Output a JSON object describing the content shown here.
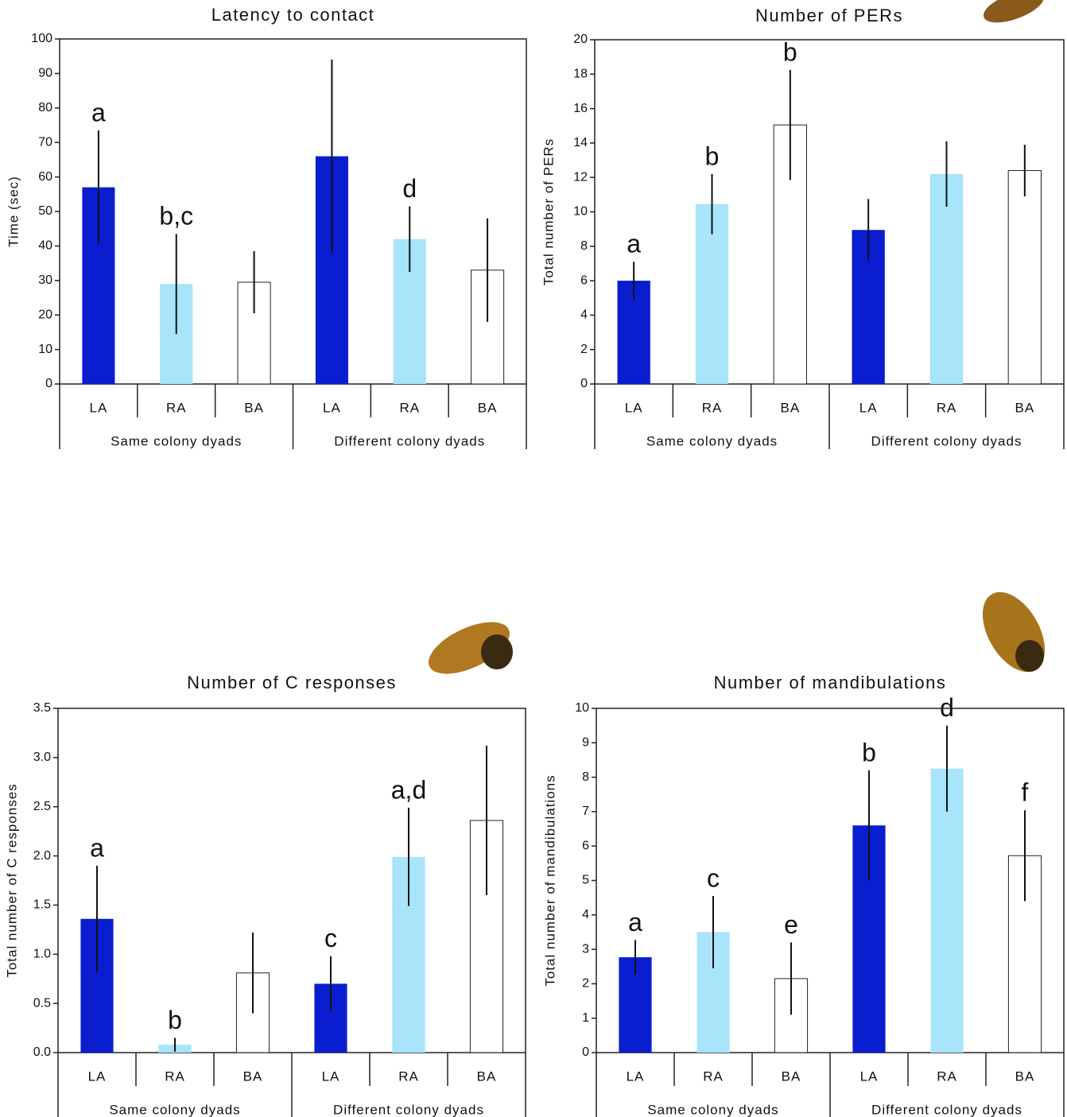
{
  "chart_data": [
    {
      "type": "bar",
      "title": "Latency to contact",
      "y_label": "Time (sec)",
      "categories": [
        "LA",
        "RA",
        "BA",
        "LA",
        "RA",
        "BA"
      ],
      "groups": [
        "Same colony dyads",
        "Different colony dyads"
      ],
      "values": [
        57,
        29,
        29.5,
        66,
        42,
        33
      ],
      "errors": [
        16.5,
        14.5,
        9,
        28,
        9.5,
        15
      ],
      "annotations": [
        "a",
        "b,c",
        null,
        null,
        "d",
        null
      ],
      "colors": [
        "#0a1ecf",
        "#a8e4fa",
        "#ffffff",
        "#0a1ecf",
        "#a8e4fa",
        "#ffffff"
      ],
      "ylim": [
        0,
        100
      ],
      "yticks": [
        0,
        10,
        20,
        30,
        40,
        50,
        60,
        70,
        80,
        90,
        100
      ]
    },
    {
      "type": "bar",
      "title": "Number of PERs",
      "y_label": "Total number of PERs",
      "categories": [
        "LA",
        "RA",
        "BA",
        "LA",
        "RA",
        "BA"
      ],
      "groups": [
        "Same colony dyads",
        "Different colony dyads"
      ],
      "values": [
        6,
        10.45,
        15.05,
        8.95,
        12.2,
        12.4
      ],
      "errors": [
        1.1,
        1.75,
        3.2,
        1.8,
        1.9,
        1.5
      ],
      "annotations": [
        "a",
        "b",
        "b",
        null,
        null,
        null
      ],
      "colors": [
        "#0a1ecf",
        "#a8e4fa",
        "#ffffff",
        "#0a1ecf",
        "#a8e4fa",
        "#ffffff"
      ],
      "ylim": [
        0,
        20
      ],
      "yticks": [
        0,
        2,
        4,
        6,
        8,
        10,
        12,
        14,
        16,
        18,
        20
      ]
    },
    {
      "type": "bar",
      "title": "Number of C responses",
      "y_label": "Total number of C responses",
      "categories": [
        "LA",
        "RA",
        "BA",
        "LA",
        "RA",
        "BA"
      ],
      "groups": [
        "Same colony dyads",
        "Different colony dyads"
      ],
      "values": [
        1.36,
        0.08,
        0.81,
        0.7,
        1.99,
        2.36
      ],
      "errors": [
        0.54,
        0.07,
        0.41,
        0.28,
        0.5,
        0.76
      ],
      "annotations": [
        "a",
        "b",
        null,
        "c",
        "a,d",
        null
      ],
      "colors": [
        "#0a1ecf",
        "#a8e4fa",
        "#ffffff",
        "#0a1ecf",
        "#a8e4fa",
        "#ffffff"
      ],
      "ylim": [
        0,
        3.5
      ],
      "yticks": [
        {
          "value": 0,
          "label": "0.0"
        },
        0.5,
        {
          "value": 1,
          "label": "1.0"
        },
        1.5,
        {
          "value": 2,
          "label": "2.0"
        },
        2.5,
        {
          "value": 3,
          "label": "3.0"
        },
        3.5
      ]
    },
    {
      "type": "bar",
      "title": "Number of mandibulations",
      "y_label": "Total number of mandibulations",
      "categories": [
        "LA",
        "RA",
        "BA",
        "LA",
        "RA",
        "BA"
      ],
      "groups": [
        "Same colony dyads",
        "Different colony dyads"
      ],
      "values": [
        2.77,
        3.5,
        2.15,
        6.6,
        8.25,
        5.72
      ],
      "errors": [
        0.5,
        1.05,
        1.05,
        1.6,
        1.25,
        1.32
      ],
      "annotations": [
        "a",
        "c",
        "e",
        "b",
        "d",
        "f"
      ],
      "colors": [
        "#0a1ecf",
        "#a8e4fa",
        "#ffffff",
        "#0a1ecf",
        "#a8e4fa",
        "#ffffff"
      ],
      "ylim": [
        0,
        10
      ],
      "yticks": [
        0,
        1,
        2,
        3,
        4,
        5,
        6,
        7,
        8,
        9,
        10
      ]
    }
  ]
}
